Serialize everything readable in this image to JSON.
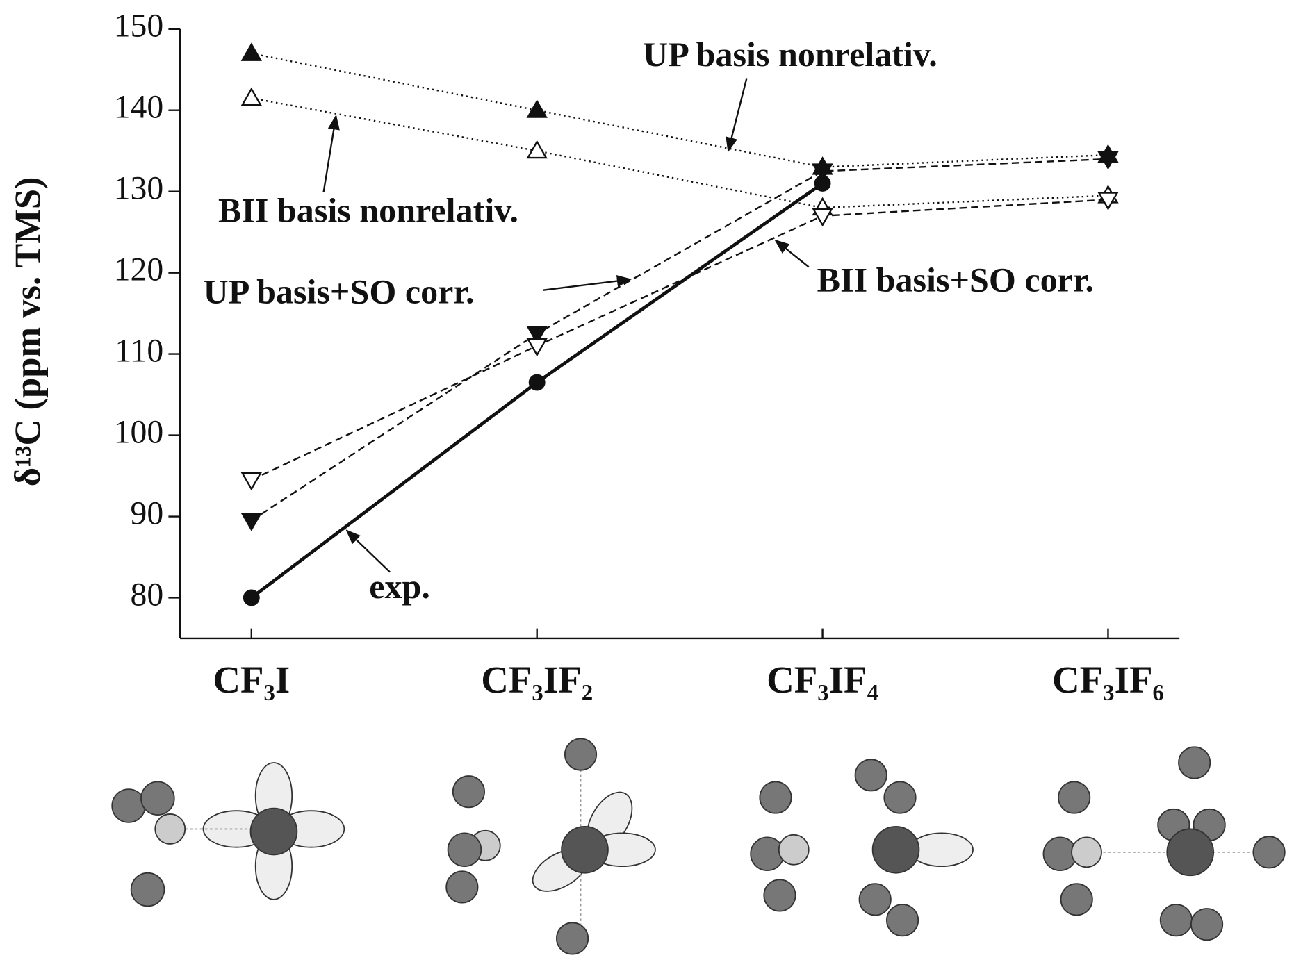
{
  "chart_data": {
    "type": "line",
    "ylabel": "δ¹³C (ppm vs. TMS)",
    "categories": [
      "CF₃I",
      "CF₃IF₂",
      "CF₃IF₄",
      "CF₃IF₆"
    ],
    "series": [
      {
        "name": "UP basis nonrelativ.",
        "color": "#111",
        "marker": "triangle-up",
        "filled": true,
        "dash": "dotted",
        "values": [
          147,
          140,
          133,
          134.5
        ]
      },
      {
        "name": "BII basis nonrelativ.",
        "color": "#111",
        "marker": "triangle-up",
        "filled": false,
        "dash": "dotted",
        "values": [
          141.5,
          135,
          128,
          129.5
        ]
      },
      {
        "name": "UP basis+SO corr.",
        "color": "#111",
        "marker": "triangle-down",
        "filled": true,
        "dash": "dashed",
        "values": [
          89.5,
          112.5,
          132.5,
          134
        ]
      },
      {
        "name": "BII basis+SO corr.",
        "color": "#111",
        "marker": "triangle-down",
        "filled": false,
        "dash": "dashed",
        "values": [
          94.5,
          111,
          127,
          129
        ]
      },
      {
        "name": "exp.",
        "color": "#111",
        "marker": "circle",
        "filled": true,
        "dash": "solid",
        "values": [
          80,
          106.5,
          131,
          null
        ]
      }
    ],
    "ylim": [
      75,
      150
    ],
    "yticks": [
      80,
      90,
      100,
      110,
      120,
      130,
      140,
      150
    ]
  }
}
